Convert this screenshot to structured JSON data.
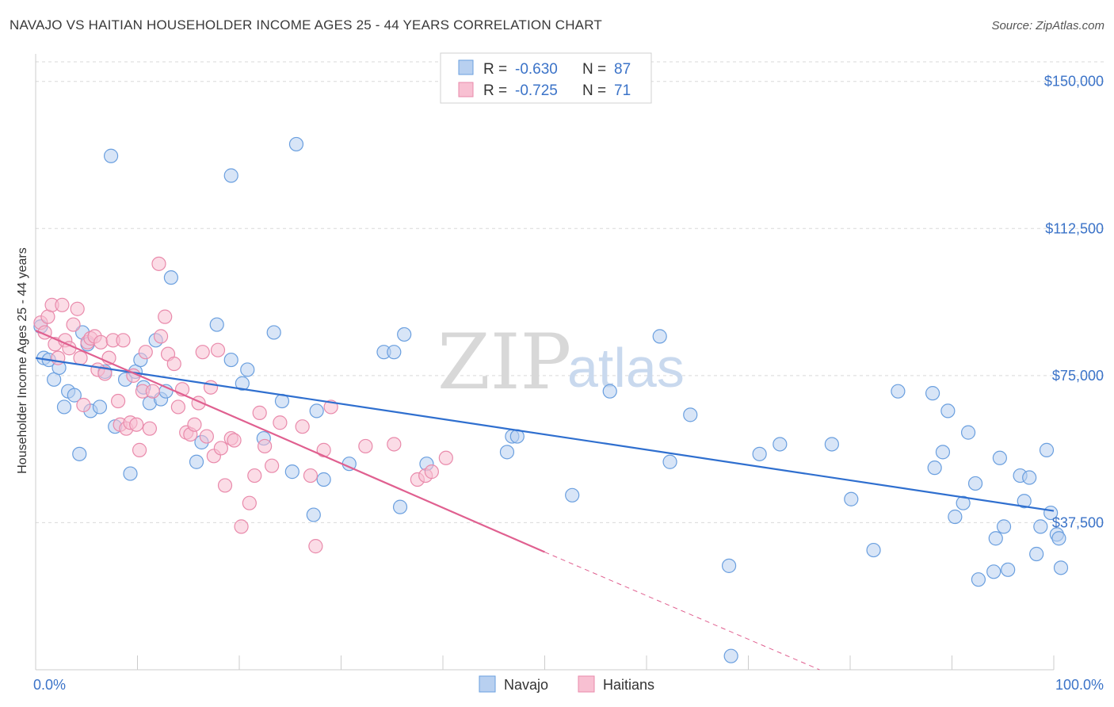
{
  "title": "NAVAJO VS HAITIAN HOUSEHOLDER INCOME AGES 25 - 44 YEARS CORRELATION CHART",
  "source": "Source: ZipAtlas.com",
  "watermark": {
    "zip": "ZIP",
    "atlas": "atlas"
  },
  "colors": {
    "navajo_fill": "#b8d0f0",
    "navajo_stroke": "#6a9fdf",
    "navajo_line": "#2f6fcf",
    "haitians_fill": "#f8c0d2",
    "haitians_stroke": "#e98aab",
    "haitians_line": "#e06090",
    "grid": "#d9d9d9",
    "tick_label": "#3b73c8"
  },
  "legend": {
    "r_label": "R =",
    "n_label": "N =",
    "rows": [
      {
        "r": "-0.630",
        "n": "87"
      },
      {
        "r": "-0.725",
        "n": "71"
      }
    ]
  },
  "chart_data": {
    "type": "scatter",
    "ylabel": "Householder Income Ages 25 - 44 years",
    "x_tick_labels": [
      "0.0%",
      "100.0%"
    ],
    "y_tick_labels": [
      "$150,000",
      "$112,500",
      "$75,000",
      "$37,500"
    ],
    "y_ticks": [
      150000,
      112500,
      75000,
      37500
    ],
    "xlim": [
      0,
      100
    ],
    "ylim": [
      0,
      155000
    ],
    "grid": true,
    "legend_placement": "top-center",
    "series": [
      {
        "name": "Navajo",
        "trend": {
          "x": [
            0,
            100
          ],
          "y": [
            79500,
            40500
          ]
        },
        "points": [
          [
            0.5,
            87500
          ],
          [
            0.8,
            79500
          ],
          [
            1.3,
            79000
          ],
          [
            1.8,
            74000
          ],
          [
            2.3,
            77000
          ],
          [
            2.8,
            67000
          ],
          [
            3.2,
            71000
          ],
          [
            3.8,
            70000
          ],
          [
            4.3,
            55000
          ],
          [
            4.6,
            86000
          ],
          [
            5.1,
            83000
          ],
          [
            5.4,
            66000
          ],
          [
            6.3,
            67000
          ],
          [
            6.8,
            76000
          ],
          [
            7.4,
            131000
          ],
          [
            7.8,
            62000
          ],
          [
            8.8,
            74000
          ],
          [
            9.3,
            50000
          ],
          [
            9.8,
            76000
          ],
          [
            10.3,
            79000
          ],
          [
            10.6,
            72000
          ],
          [
            11.2,
            68000
          ],
          [
            11.8,
            84000
          ],
          [
            12.3,
            69000
          ],
          [
            12.8,
            71000
          ],
          [
            13.3,
            100000
          ],
          [
            15.8,
            53000
          ],
          [
            16.3,
            58000
          ],
          [
            17.8,
            88000
          ],
          [
            19.2,
            79000
          ],
          [
            19.2,
            126000
          ],
          [
            20.3,
            73000
          ],
          [
            20.8,
            76500
          ],
          [
            22.4,
            59000
          ],
          [
            23.4,
            86000
          ],
          [
            24.2,
            68500
          ],
          [
            25.2,
            50500
          ],
          [
            25.6,
            134000
          ],
          [
            27.3,
            39500
          ],
          [
            27.6,
            66000
          ],
          [
            28.3,
            48500
          ],
          [
            30.8,
            52500
          ],
          [
            34.2,
            81000
          ],
          [
            35.2,
            81000
          ],
          [
            35.8,
            41500
          ],
          [
            36.2,
            85500
          ],
          [
            38.4,
            52500
          ],
          [
            46.3,
            55500
          ],
          [
            46.8,
            59500
          ],
          [
            47.3,
            59500
          ],
          [
            52.7,
            44500
          ],
          [
            56.4,
            71000
          ],
          [
            61.3,
            85000
          ],
          [
            62.3,
            53000
          ],
          [
            64.3,
            65000
          ],
          [
            68.1,
            26500
          ],
          [
            68.3,
            3500
          ],
          [
            71.1,
            55000
          ],
          [
            73.1,
            57500
          ],
          [
            78.2,
            57500
          ],
          [
            80.1,
            43500
          ],
          [
            82.3,
            30500
          ],
          [
            84.7,
            71000
          ],
          [
            88.1,
            70500
          ],
          [
            88.3,
            51500
          ],
          [
            89.1,
            55500
          ],
          [
            89.6,
            66000
          ],
          [
            90.3,
            39000
          ],
          [
            91.1,
            42500
          ],
          [
            91.6,
            60500
          ],
          [
            92.3,
            47500
          ],
          [
            92.6,
            23000
          ],
          [
            94.1,
            25000
          ],
          [
            94.3,
            33500
          ],
          [
            94.7,
            54000
          ],
          [
            95.1,
            36500
          ],
          [
            95.5,
            25500
          ],
          [
            96.7,
            49500
          ],
          [
            97.1,
            43000
          ],
          [
            97.6,
            49000
          ],
          [
            98.3,
            29500
          ],
          [
            98.7,
            36500
          ],
          [
            99.3,
            56000
          ],
          [
            99.7,
            40000
          ],
          [
            100.3,
            34500
          ],
          [
            100.5,
            33500
          ],
          [
            100.7,
            26000
          ]
        ]
      },
      {
        "name": "Haitians",
        "trend": {
          "x": [
            0,
            50
          ],
          "y": [
            86500,
            30000
          ]
        },
        "trend_extension": {
          "x": [
            50,
            77
          ],
          "y": [
            30000,
            0
          ]
        },
        "points": [
          [
            0.5,
            88500
          ],
          [
            0.9,
            86000
          ],
          [
            1.2,
            90000
          ],
          [
            1.6,
            93000
          ],
          [
            1.9,
            83000
          ],
          [
            2.2,
            79500
          ],
          [
            2.6,
            93000
          ],
          [
            2.9,
            84000
          ],
          [
            3.3,
            82000
          ],
          [
            3.7,
            88000
          ],
          [
            4.1,
            92000
          ],
          [
            4.4,
            79500
          ],
          [
            4.7,
            67500
          ],
          [
            5.1,
            83500
          ],
          [
            5.4,
            84500
          ],
          [
            5.8,
            85000
          ],
          [
            6.1,
            76500
          ],
          [
            6.4,
            83500
          ],
          [
            6.8,
            75500
          ],
          [
            7.2,
            79500
          ],
          [
            7.6,
            84000
          ],
          [
            8.1,
            68500
          ],
          [
            8.3,
            62500
          ],
          [
            8.6,
            84000
          ],
          [
            8.9,
            61500
          ],
          [
            9.3,
            63000
          ],
          [
            9.6,
            75000
          ],
          [
            9.9,
            62500
          ],
          [
            10.2,
            56000
          ],
          [
            10.5,
            71000
          ],
          [
            10.8,
            81000
          ],
          [
            11.2,
            61500
          ],
          [
            11.5,
            71000
          ],
          [
            12.1,
            103500
          ],
          [
            12.3,
            85000
          ],
          [
            12.7,
            90000
          ],
          [
            13.0,
            80500
          ],
          [
            13.6,
            78000
          ],
          [
            14.0,
            67000
          ],
          [
            14.4,
            71500
          ],
          [
            14.8,
            60500
          ],
          [
            15.2,
            60000
          ],
          [
            15.6,
            62500
          ],
          [
            16.0,
            68000
          ],
          [
            16.4,
            81000
          ],
          [
            16.8,
            59500
          ],
          [
            17.2,
            72000
          ],
          [
            17.5,
            54500
          ],
          [
            17.9,
            81500
          ],
          [
            18.2,
            56500
          ],
          [
            18.6,
            47000
          ],
          [
            19.2,
            59000
          ],
          [
            19.5,
            58500
          ],
          [
            20.2,
            36500
          ],
          [
            21.0,
            42500
          ],
          [
            21.5,
            49500
          ],
          [
            22.0,
            65500
          ],
          [
            22.5,
            57000
          ],
          [
            23.2,
            52000
          ],
          [
            24.0,
            63000
          ],
          [
            26.2,
            62000
          ],
          [
            27.0,
            49500
          ],
          [
            27.5,
            31500
          ],
          [
            28.3,
            56000
          ],
          [
            29.0,
            67000
          ],
          [
            32.4,
            57000
          ],
          [
            35.2,
            57500
          ],
          [
            37.5,
            48500
          ],
          [
            38.3,
            49500
          ],
          [
            38.9,
            50500
          ],
          [
            40.3,
            54000
          ]
        ]
      }
    ]
  },
  "bottom_legend": [
    "Navajo",
    "Haitians"
  ]
}
